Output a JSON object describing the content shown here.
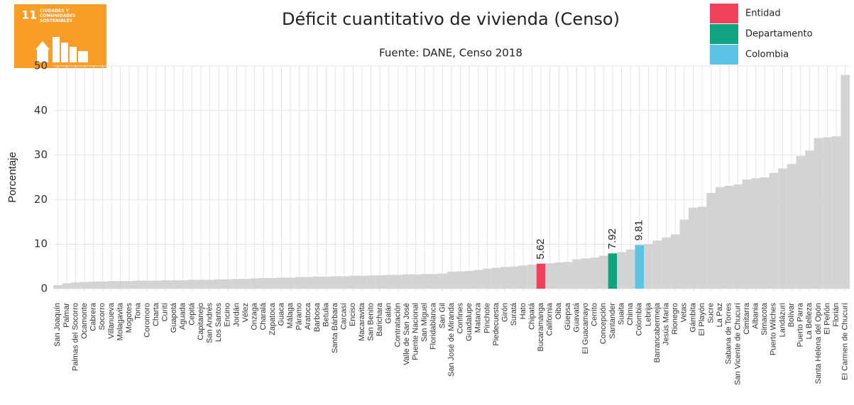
{
  "chart_data": {
    "type": "bar",
    "title": "Déficit cuantitativo de vivienda (Censo)",
    "subtitle": "Fuente: DANE, Censo 2018",
    "ylabel": "Porcentaje",
    "icon": {
      "number": "11",
      "text": "CIUDADES Y COMUNIDADES SOSTENIBLES"
    },
    "legend": [
      {
        "name": "Entidad",
        "color": "#f0405a"
      },
      {
        "name": "Departamento",
        "color": "#0fa37f"
      },
      {
        "name": "Colombia",
        "color": "#5ec4e6"
      }
    ],
    "color": "#d3d3d3",
    "categories": [
      "San Joaquín",
      "Palmar",
      "Palmas del Socorro",
      "Ocamonte",
      "Cabrera",
      "Socorro",
      "Villanueva",
      "Molagavita",
      "Mogotes",
      "Tona",
      "Coromoro",
      "Charta",
      "Curití",
      "Guapotá",
      "Aguada",
      "Cepitá",
      "Capitanejo",
      "San Andrés",
      "Los Santos",
      "Encino",
      "Jordán",
      "Vélez",
      "Onzaga",
      "Charalá",
      "Zapatoca",
      "Guaca",
      "Málaga",
      "Páramo",
      "Aratoca",
      "Barbosa",
      "Betulia",
      "Santa Bárbara",
      "Carcasí",
      "Enciso",
      "Macaravita",
      "San Benito",
      "Barichara",
      "Galán",
      "Contratación",
      "Valle de San José",
      "Puente Nacional",
      "San Miguel",
      "Floridablanca",
      "San Gil",
      "San José de Miranda",
      "Confines",
      "Guadalupe",
      "Matanza",
      "Pinchote",
      "Piedecuesta",
      "Girón",
      "Suratá",
      "Hato",
      "Chipatá",
      "Bucaramanga",
      "California",
      "Oiba",
      "Güepsa",
      "Guavatá",
      "El Guacamayo",
      "Cerrito",
      "Concepción",
      "Santander",
      "Suaita",
      "Chima",
      "Colombia",
      "Lebrija",
      "Barrancabermeja",
      "Jesús María",
      "Rionegro",
      "Vetas",
      "Gámbita",
      "El Playón",
      "Sucre",
      "La Paz",
      "Sabana de Torres",
      "San Vicente de Chucurí",
      "Cimitarra",
      "Albania",
      "Simacota",
      "Puerto Wilches",
      "Landázuri",
      "Bolívar",
      "Puerto Parra",
      "La Belleza",
      "Santa Helena del Opón",
      "El Peñón",
      "Florián",
      "El Carmen de Chucurí"
    ],
    "values": [
      0.8,
      1.2,
      1.4,
      1.5,
      1.6,
      1.6,
      1.7,
      1.7,
      1.7,
      1.8,
      1.8,
      1.8,
      1.9,
      1.9,
      1.9,
      2.0,
      2.0,
      2.0,
      2.1,
      2.1,
      2.2,
      2.2,
      2.3,
      2.4,
      2.4,
      2.5,
      2.5,
      2.6,
      2.6,
      2.7,
      2.7,
      2.8,
      2.8,
      2.9,
      2.9,
      3.0,
      3.0,
      3.1,
      3.1,
      3.2,
      3.2,
      3.3,
      3.3,
      3.4,
      3.8,
      3.9,
      4.0,
      4.2,
      4.5,
      4.7,
      4.9,
      5.0,
      5.2,
      5.4,
      5.62,
      5.7,
      5.9,
      6.0,
      6.6,
      6.8,
      7.0,
      7.4,
      7.92,
      8.2,
      8.8,
      9.81,
      10.0,
      10.8,
      11.5,
      12.2,
      15.5,
      18.2,
      18.4,
      21.5,
      22.8,
      23.1,
      23.4,
      24.5,
      24.8,
      25.0,
      26.0,
      27.0,
      28.0,
      29.8,
      31.0,
      33.8,
      34.0,
      34.2,
      48.0
    ],
    "bar_colors": [
      "#d3d3d3",
      "#d3d3d3",
      "#d3d3d3",
      "#d3d3d3",
      "#d3d3d3",
      "#d3d3d3",
      "#d3d3d3",
      "#d3d3d3",
      "#d3d3d3",
      "#d3d3d3",
      "#d3d3d3",
      "#d3d3d3",
      "#d3d3d3",
      "#d3d3d3",
      "#d3d3d3",
      "#d3d3d3",
      "#d3d3d3",
      "#d3d3d3",
      "#d3d3d3",
      "#d3d3d3",
      "#d3d3d3",
      "#d3d3d3",
      "#d3d3d3",
      "#d3d3d3",
      "#d3d3d3",
      "#d3d3d3",
      "#d3d3d3",
      "#d3d3d3",
      "#d3d3d3",
      "#d3d3d3",
      "#d3d3d3",
      "#d3d3d3",
      "#d3d3d3",
      "#d3d3d3",
      "#d3d3d3",
      "#d3d3d3",
      "#d3d3d3",
      "#d3d3d3",
      "#d3d3d3",
      "#d3d3d3",
      "#d3d3d3",
      "#d3d3d3",
      "#d3d3d3",
      "#d3d3d3",
      "#d3d3d3",
      "#d3d3d3",
      "#d3d3d3",
      "#d3d3d3",
      "#d3d3d3",
      "#d3d3d3",
      "#d3d3d3",
      "#d3d3d3",
      "#d3d3d3",
      "#d3d3d3",
      "#f0405a",
      "#d3d3d3",
      "#d3d3d3",
      "#d3d3d3",
      "#d3d3d3",
      "#d3d3d3",
      "#d3d3d3",
      "#d3d3d3",
      "#0fa37f",
      "#d3d3d3",
      "#d3d3d3",
      "#5ec4e6",
      "#d3d3d3",
      "#d3d3d3",
      "#d3d3d3",
      "#d3d3d3",
      "#d3d3d3",
      "#d3d3d3",
      "#d3d3d3",
      "#d3d3d3",
      "#d3d3d3",
      "#d3d3d3",
      "#d3d3d3",
      "#d3d3d3",
      "#d3d3d3",
      "#d3d3d3",
      "#d3d3d3",
      "#d3d3d3",
      "#d3d3d3",
      "#d3d3d3",
      "#d3d3d3",
      "#d3d3d3",
      "#d3d3d3",
      "#d3d3d3",
      "#d3d3d3"
    ],
    "ylim": [
      0,
      50
    ],
    "yticks": [
      0,
      10,
      20,
      30,
      40,
      50
    ],
    "grid": true
  }
}
